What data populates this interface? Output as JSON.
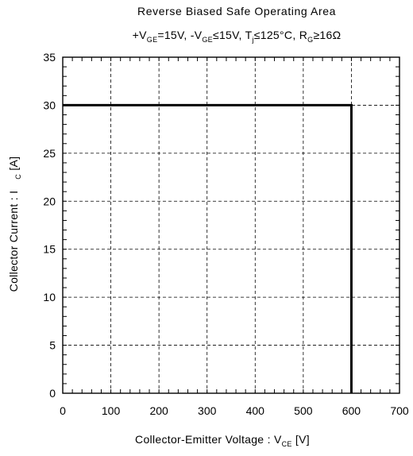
{
  "chart_data": {
    "type": "line",
    "title": "Reverse Biased Safe Operating Area",
    "subtitle": {
      "p1": "+V",
      "s1": "GE",
      "p2": "=15V, -V",
      "s2": "GE",
      "p3": "≤15V, T",
      "s3": "j",
      "p4": "≤125°C, R",
      "s4": "G",
      "p5": "≥16Ω"
    },
    "xlabel": {
      "main": "Collector-Emitter Voltage  : V",
      "sub": "CE",
      "unit": "  [V]"
    },
    "ylabel": {
      "main": "Collector Current : I",
      "sub": "C",
      "unit": "  [A]"
    },
    "xlim": [
      0,
      700
    ],
    "ylim": [
      0,
      35
    ],
    "x_ticks": [
      0,
      100,
      200,
      300,
      400,
      500,
      600,
      700
    ],
    "y_ticks": [
      0,
      5,
      10,
      15,
      20,
      25,
      30,
      35
    ],
    "grid": true,
    "series": [
      {
        "x": [
          0,
          600,
          600
        ],
        "y": [
          30,
          30,
          0
        ]
      }
    ]
  }
}
